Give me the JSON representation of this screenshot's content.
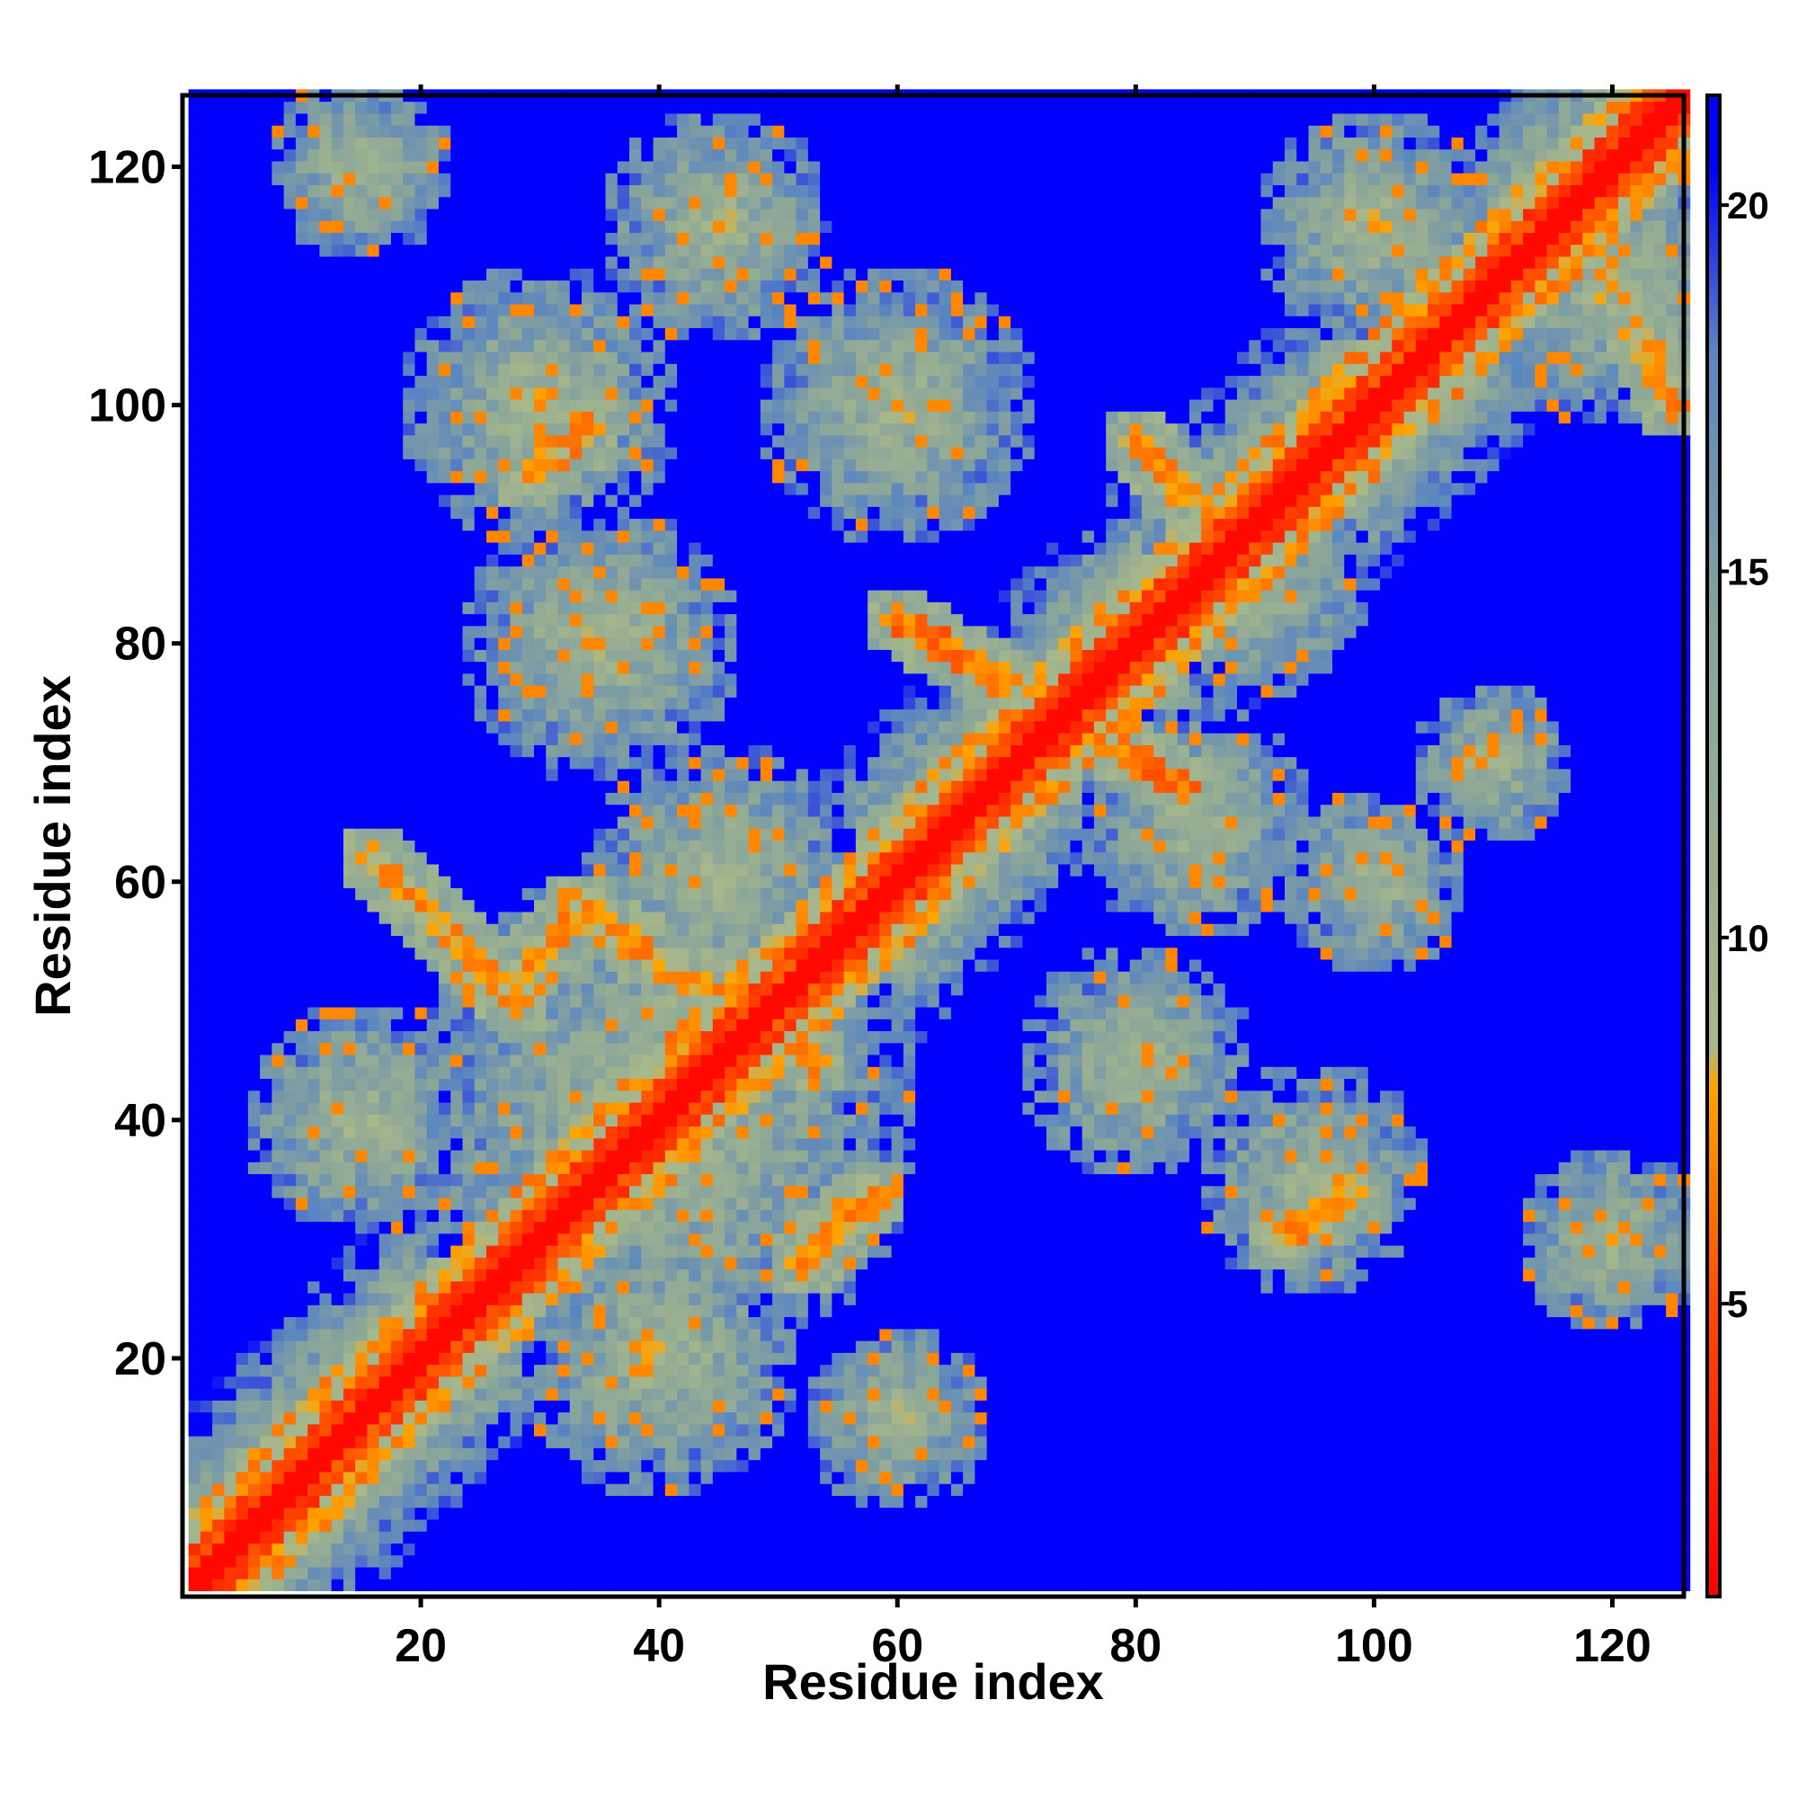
{
  "chart_data": {
    "type": "heatmap",
    "title": "",
    "xlabel": "Residue index",
    "ylabel": "Residue index",
    "n_residues": 126,
    "xlim": [
      1,
      126
    ],
    "ylim": [
      1,
      126
    ],
    "x_ticks": [
      20,
      40,
      60,
      80,
      100,
      120
    ],
    "y_ticks": [
      20,
      40,
      60,
      80,
      100,
      120
    ],
    "colorbar": {
      "range": [
        1,
        21.5
      ],
      "ticks": [
        5,
        10,
        15,
        20
      ],
      "placement": "right",
      "stops": [
        {
          "value": 1,
          "color": "#ff0000"
        },
        {
          "value": 5,
          "color": "#ff4a00"
        },
        {
          "value": 8,
          "color": "#ffa500"
        },
        {
          "value": 8.5,
          "color": "#a8b88a"
        },
        {
          "value": 14,
          "color": "#8aa59a"
        },
        {
          "value": 18,
          "color": "#5b86c0"
        },
        {
          "value": 20.5,
          "color": "#0000ff"
        },
        {
          "value": 21.5,
          "color": "#0000ff"
        }
      ]
    },
    "contact_features": [
      {
        "kind": "diagonal",
        "description_value": "main diagonal i=j, distance ~1-4"
      },
      {
        "kind": "antiparallel",
        "from": [
          50,
          28
        ],
        "to": [
          62,
          16
        ],
        "min_distance": 6
      },
      {
        "kind": "antiparallel",
        "from": [
          45,
          53
        ],
        "to": [
          58,
          33
        ],
        "min_distance": 6
      },
      {
        "kind": "antiparallel",
        "from": [
          82,
          60
        ],
        "to": [
          68,
          84
        ],
        "min_distance": 5
      },
      {
        "kind": "antiparallel",
        "from": [
          97,
          80
        ],
        "to": [
          92,
          85
        ],
        "min_distance": 6
      },
      {
        "kind": "parallel",
        "from": [
          30,
          92
        ],
        "to": [
          34,
          98
        ],
        "min_distance": 6
      },
      {
        "kind": "parallel",
        "from": [
          94,
          29
        ],
        "to": [
          98,
          34
        ],
        "min_distance": 6
      },
      {
        "kind": "parallel",
        "from": [
          106,
          122
        ],
        "to": [
          100,
          125
        ],
        "min_distance": 6
      },
      {
        "kind": "parallel",
        "from": [
          28,
          52
        ],
        "to": [
          34,
          58
        ],
        "min_distance": 6
      },
      {
        "kind": "parallel",
        "from": [
          52,
          28
        ],
        "to": [
          58,
          34
        ],
        "min_distance": 6
      }
    ]
  }
}
